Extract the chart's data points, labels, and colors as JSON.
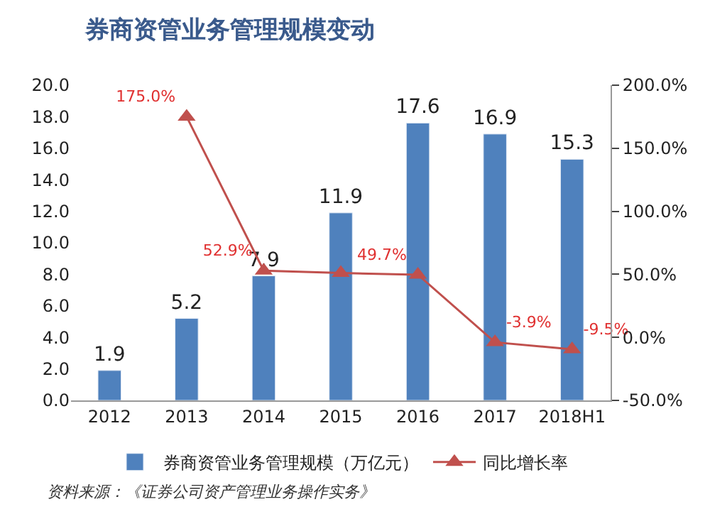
{
  "chart_data": {
    "type": "bar",
    "title": "券商资管业务管理规模变动",
    "categories": [
      "2012",
      "2013",
      "2014",
      "2015",
      "2016",
      "2017",
      "2018H1"
    ],
    "series": [
      {
        "name": "券商资管业务管理规模（万亿元）",
        "color": "#4f81bd",
        "values": [
          1.9,
          5.2,
          7.9,
          11.9,
          17.6,
          16.9,
          15.3
        ],
        "value_labels": [
          "1.9",
          "5.2",
          "7.9",
          "11.9",
          "17.6",
          "16.9",
          "15.3"
        ]
      },
      {
        "name": "同比增长率",
        "type": "line",
        "axis": "y2",
        "color": "#c0504d",
        "marker": "triangle",
        "values": [
          null,
          175.0,
          52.9,
          51,
          49.7,
          -3.9,
          -9.5
        ],
        "value_labels": [
          null,
          "175.0%",
          "52.9%",
          null,
          "49.7%",
          "-3.9%",
          "-9.5%"
        ]
      }
    ],
    "ylim": [
      0,
      20
    ],
    "yticks": [
      {
        "value": 0,
        "label": "0.0"
      },
      {
        "value": 2,
        "label": "2.0"
      },
      {
        "value": 4,
        "label": "4.0"
      },
      {
        "value": 6,
        "label": "6.0"
      },
      {
        "value": 8,
        "label": "8.0"
      },
      {
        "value": 10,
        "label": "10.0"
      },
      {
        "value": 12,
        "label": "12.0"
      },
      {
        "value": 14,
        "label": "14.0"
      },
      {
        "value": 16,
        "label": "16.0"
      },
      {
        "value": 18,
        "label": "18.0"
      },
      {
        "value": 20,
        "label": "20.0"
      }
    ],
    "y2lim": [
      -50,
      200
    ],
    "y2ticks": [
      {
        "value": -50,
        "label": "-50.0%"
      },
      {
        "value": 0,
        "label": "0.0%"
      },
      {
        "value": 50,
        "label": "50.0%"
      },
      {
        "value": 100,
        "label": "100.0%"
      },
      {
        "value": 150,
        "label": "150.0%"
      },
      {
        "value": 200,
        "label": "200.0%"
      }
    ],
    "legend": "bottom",
    "annotations": [
      "资料来源：《证券公司资产管理业务操作实务》"
    ]
  }
}
